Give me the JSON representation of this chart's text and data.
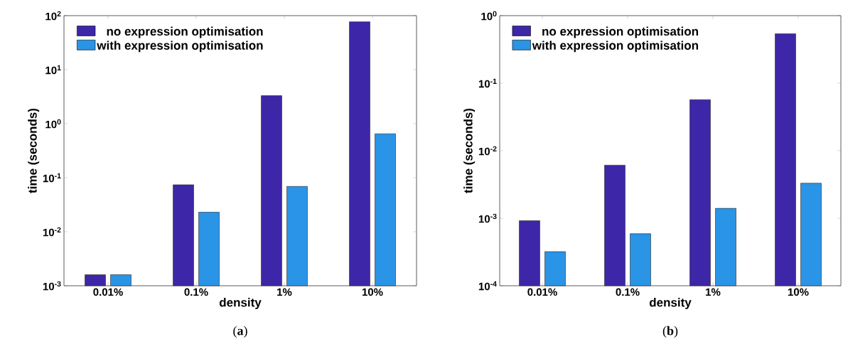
{
  "chart_data": [
    {
      "type": "bar",
      "categories": [
        "0.01%",
        "0.1%",
        "1%",
        "10%"
      ],
      "xlabel": "density",
      "ylabel": "time (seconds)",
      "log": "y",
      "ylim": [
        0.001,
        100
      ],
      "yticks": [
        {
          "value": 0.001,
          "label": "10$^{-3}$"
        },
        {
          "value": 0.01,
          "label": "10$^{-2}$"
        },
        {
          "value": 0.1,
          "label": "10$^{-1}$"
        },
        {
          "value": 1,
          "label": "10$^{0}$"
        },
        {
          "value": 10,
          "label": "10$^{1}$"
        },
        {
          "value": 100,
          "label": "10$^{2}$"
        }
      ],
      "legend": "top left",
      "series": [
        {
          "name": "no expression optimisation",
          "color": "#3e26a8",
          "values": [
            0.0016,
            0.074,
            3.3,
            77
          ]
        },
        {
          "name": "with expression optimisation",
          "color": "#2a94e6",
          "values": [
            0.0016,
            0.023,
            0.069,
            0.65
          ]
        }
      ],
      "annotations": [
        "(**a**)"
      ]
    },
    {
      "type": "bar",
      "categories": [
        "0.01%",
        "0.1%",
        "1%",
        "10%"
      ],
      "xlabel": "density",
      "ylabel": "time (seconds)",
      "log": "y",
      "ylim": [
        0.0001,
        1
      ],
      "yticks": [
        {
          "value": 0.0001,
          "label": "10$^{-4}$"
        },
        {
          "value": 0.001,
          "label": "10$^{-3}$"
        },
        {
          "value": 0.01,
          "label": "10$^{-2}$"
        },
        {
          "value": 0.1,
          "label": "10$^{-1}$"
        },
        {
          "value": 1,
          "label": "10$^{0}$"
        }
      ],
      "legend": "top left",
      "series": [
        {
          "name": "no expression optimisation",
          "color": "#3e26a8",
          "values": [
            0.00092,
            0.0061,
            0.057,
            0.54
          ]
        },
        {
          "name": "with expression optimisation",
          "color": "#2a94e6",
          "values": [
            0.00032,
            0.00059,
            0.0014,
            0.0033
          ]
        }
      ],
      "annotations": [
        "(**b**)"
      ]
    }
  ]
}
